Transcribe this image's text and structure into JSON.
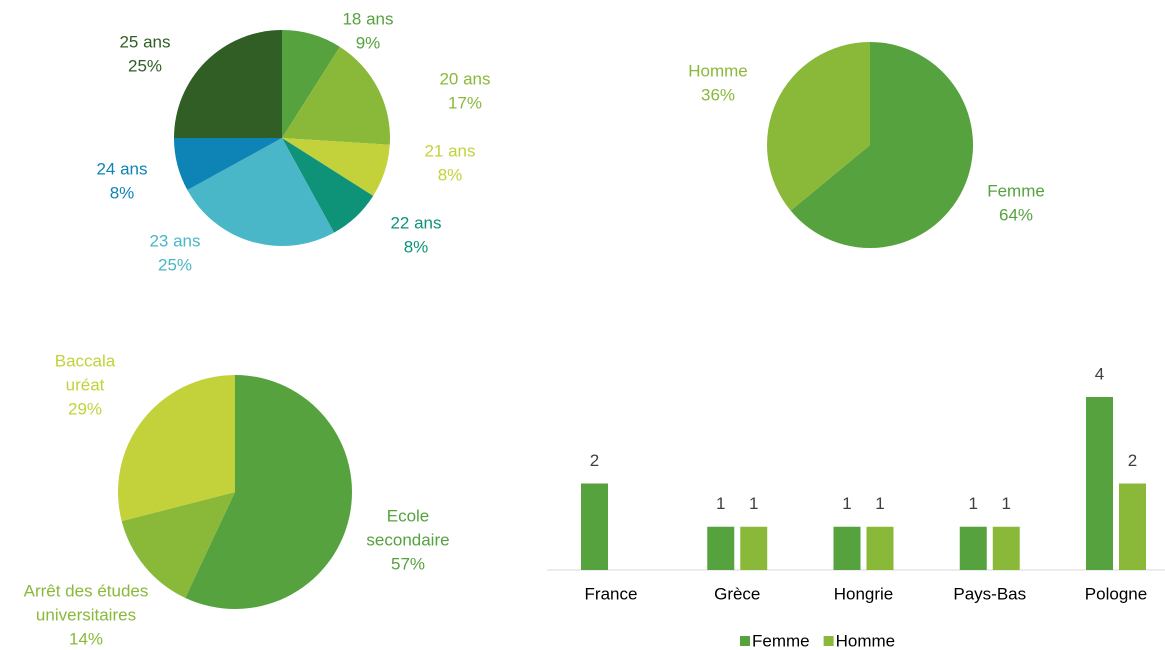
{
  "chart_data": [
    {
      "type": "pie",
      "categories": [
        "18 ans",
        "20 ans",
        "21 ans",
        "22 ans",
        "23 ans",
        "24 ans",
        "25 ans"
      ],
      "values": [
        9,
        17,
        8,
        8,
        25,
        8,
        25
      ],
      "value_labels": [
        "9%",
        "17%",
        "8%",
        "8%",
        "25%",
        "8%",
        "25%"
      ],
      "colors": [
        "#56a23f",
        "#8ab93a",
        "#c3d23a",
        "#0e9378",
        "#4ab7c8",
        "#0d84b5",
        "#305e25"
      ]
    },
    {
      "type": "pie",
      "categories": [
        "Femme",
        "Homme"
      ],
      "values": [
        64,
        36
      ],
      "value_labels": [
        "64%",
        "36%"
      ],
      "colors": [
        "#56a23f",
        "#8ab93a"
      ]
    },
    {
      "type": "pie",
      "categories": [
        [
          "Ecole",
          "secondaire"
        ],
        [
          "Arrêt des études",
          "universitaires"
        ],
        [
          "Baccala",
          "uréat"
        ]
      ],
      "values": [
        57,
        14,
        29
      ],
      "value_labels": [
        "57%",
        "14%",
        "29%"
      ],
      "colors": [
        "#56a23f",
        "#8ab93a",
        "#c3d23a"
      ]
    },
    {
      "type": "bar",
      "categories": [
        "France",
        "Grèce",
        "Hongrie",
        "Pays-Bas",
        "Pologne"
      ],
      "series": [
        {
          "name": "Femme",
          "color": "#56a23f",
          "values": [
            2,
            1,
            1,
            1,
            4
          ]
        },
        {
          "name": "Homme",
          "color": "#8ab93a",
          "values": [
            null,
            1,
            1,
            1,
            2
          ]
        }
      ],
      "legend": "bottom"
    }
  ]
}
